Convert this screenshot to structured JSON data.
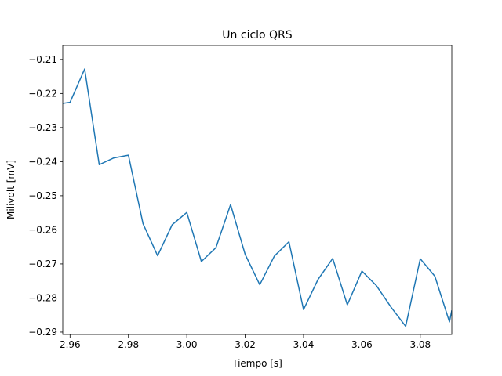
{
  "chart_data": {
    "type": "line",
    "title": "Un ciclo QRS",
    "xlabel": "Tiempo [s]",
    "ylabel": "Milivolt [mV]",
    "xlim": [
      2.9575,
      3.0908
    ],
    "ylim": [
      -0.2907,
      -0.2059
    ],
    "xticks": [
      2.96,
      2.98,
      3.0,
      3.02,
      3.04,
      3.06,
      3.08
    ],
    "xtick_labels": [
      "2.96",
      "2.98",
      "3.00",
      "3.02",
      "3.04",
      "3.06",
      "3.08"
    ],
    "yticks": [
      -0.21,
      -0.22,
      -0.23,
      -0.24,
      -0.25,
      -0.26,
      -0.27,
      -0.28,
      -0.29
    ],
    "ytick_labels": [
      "−0.21",
      "−0.22",
      "−0.23",
      "−0.24",
      "−0.25",
      "−0.26",
      "−0.27",
      "−0.28",
      "−0.29"
    ],
    "grid": false,
    "series": [
      {
        "color": "#1f77b4",
        "x": [
          2.9575,
          2.96,
          2.965,
          2.97,
          2.975,
          2.98,
          2.985,
          2.99,
          2.995,
          3.0,
          3.005,
          3.01,
          3.015,
          3.02,
          3.025,
          3.03,
          3.035,
          3.04,
          3.045,
          3.05,
          3.055,
          3.06,
          3.065,
          3.07,
          3.075,
          3.08,
          3.085,
          3.09,
          3.0908
        ],
        "y": [
          -0.2229,
          -0.2226,
          -0.2128,
          -0.2409,
          -0.2389,
          -0.2381,
          -0.2582,
          -0.2676,
          -0.2585,
          -0.2549,
          -0.2693,
          -0.2652,
          -0.2526,
          -0.2672,
          -0.2761,
          -0.2677,
          -0.2635,
          -0.2834,
          -0.2745,
          -0.2684,
          -0.282,
          -0.2721,
          -0.2764,
          -0.2827,
          -0.2883,
          -0.2685,
          -0.2736,
          -0.287,
          -0.2836
        ]
      }
    ]
  }
}
